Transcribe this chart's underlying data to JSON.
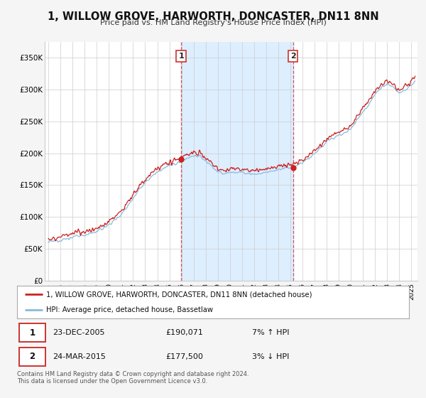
{
  "title": "1, WILLOW GROVE, HARWORTH, DONCASTER, DN11 8NN",
  "subtitle": "Price paid vs. HM Land Registry's House Price Index (HPI)",
  "ylabel_ticks": [
    "£0",
    "£50K",
    "£100K",
    "£150K",
    "£200K",
    "£250K",
    "£300K",
    "£350K"
  ],
  "ytick_values": [
    0,
    50000,
    100000,
    150000,
    200000,
    250000,
    300000,
    350000
  ],
  "ylim": [
    0,
    375000
  ],
  "xlim_start": 1994.7,
  "xlim_end": 2025.5,
  "background_color": "#f5f5f5",
  "plot_bg_color": "#ffffff",
  "shaded_region_color": "#ddeeff",
  "grid_color": "#cccccc",
  "hpi_line_color": "#88bbdd",
  "price_line_color": "#cc2222",
  "marker_color": "#cc2222",
  "vline_color": "#cc3333",
  "sale1_x": 2005.97,
  "sale1_y": 190071,
  "sale2_x": 2015.22,
  "sale2_y": 177500,
  "sale1_date": "23-DEC-2005",
  "sale1_price": "£190,071",
  "sale1_hpi": "7% ↑ HPI",
  "sale2_date": "24-MAR-2015",
  "sale2_price": "£177,500",
  "sale2_hpi": "3% ↓ HPI",
  "legend_line1": "1, WILLOW GROVE, HARWORTH, DONCASTER, DN11 8NN (detached house)",
  "legend_line2": "HPI: Average price, detached house, Bassetlaw",
  "footnote": "Contains HM Land Registry data © Crown copyright and database right 2024.\nThis data is licensed under the Open Government Licence v3.0."
}
